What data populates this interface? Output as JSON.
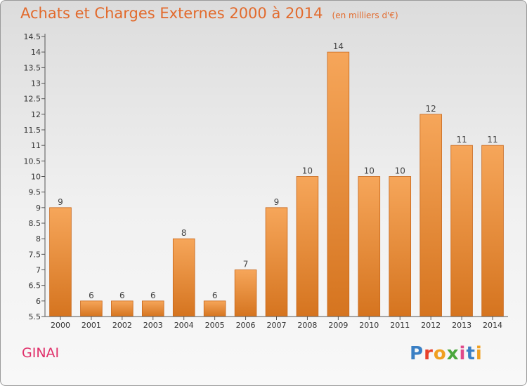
{
  "header": {
    "title": "Achats et Charges Externes 2000 à 2014",
    "subtitle": "(en milliers d'€)"
  },
  "footer": {
    "place": "GINAI",
    "logo": "Proxiti",
    "logo_colors": [
      "#3a7fc4",
      "#e8402a",
      "#f0a020",
      "#4aa83c",
      "#e04a8a",
      "#3a7fc4",
      "#f0a020"
    ]
  },
  "colors": {
    "bar_light": "#f6a65a",
    "bar_dark": "#d5741f",
    "axis": "#555555",
    "tick_text": "#333333"
  },
  "chart_data": {
    "type": "bar",
    "categories": [
      "2000",
      "2001",
      "2002",
      "2003",
      "2004",
      "2005",
      "2006",
      "2007",
      "2008",
      "2009",
      "2010",
      "2011",
      "2012",
      "2013",
      "2014"
    ],
    "values": [
      9,
      6,
      6,
      6,
      8,
      6,
      7,
      9,
      10,
      14,
      10,
      10,
      12,
      11,
      11
    ],
    "data_labels": [
      "9",
      "6",
      "6",
      "6",
      "8",
      "6",
      "7",
      "9",
      "10",
      "14",
      "10",
      "10",
      "12",
      "11",
      "11"
    ],
    "ylim": [
      5.5,
      14.5
    ],
    "yticks": [
      5.5,
      6,
      6.5,
      7,
      7.5,
      8,
      8.5,
      9,
      9.5,
      10,
      10.5,
      11,
      11.5,
      12,
      12.5,
      13,
      13.5,
      14,
      14.5
    ],
    "ytick_labels": [
      "5.5",
      "6",
      "6.5",
      "7",
      "7.5",
      "8",
      "8.5",
      "9",
      "9.5",
      "10",
      "10.5",
      "11",
      "11.5",
      "12",
      "12.5",
      "13",
      "13.5",
      "14",
      "14.5"
    ],
    "grid": false,
    "legend": "none"
  }
}
